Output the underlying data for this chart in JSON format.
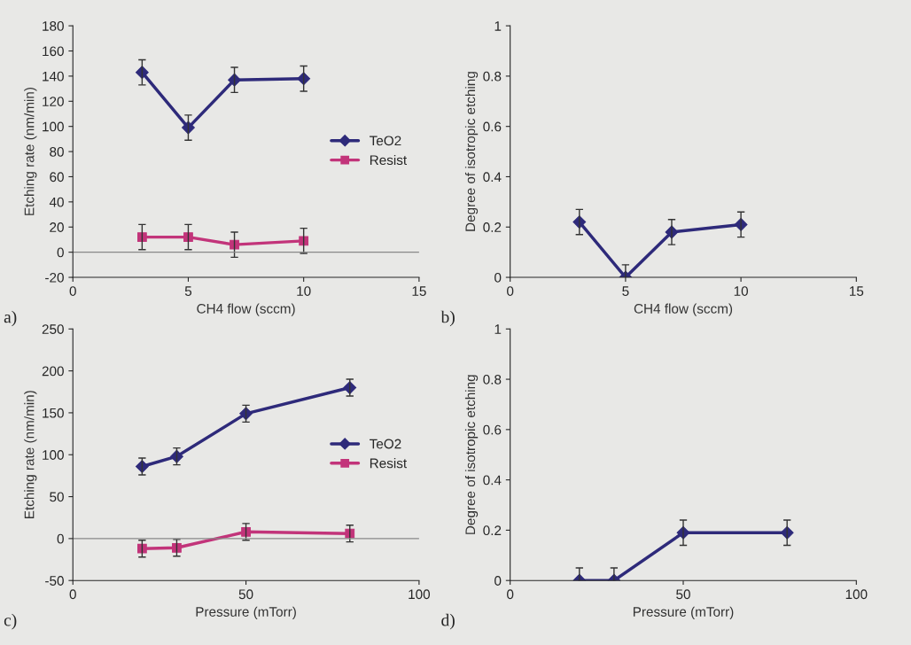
{
  "chart_data": [
    {
      "type": "line",
      "xlabel": "CH4 flow (sccm)",
      "ylabel": "Etching rate (nm/min)",
      "xlim": [
        0,
        15
      ],
      "xticks": [
        0,
        5,
        10,
        15
      ],
      "ylim": [
        -20,
        180
      ],
      "yticks": [
        -20,
        0,
        20,
        40,
        60,
        80,
        100,
        120,
        140,
        160,
        180
      ],
      "grid": false,
      "legend": "right",
      "annotations": [
        "a)"
      ],
      "ref_lines": [
        {
          "axis": "y",
          "value": 0,
          "color": "#888888"
        }
      ],
      "series": [
        {
          "name": "TeO2",
          "color": "#2e2a7a",
          "marker": "diamond",
          "x": [
            3,
            5,
            7,
            10
          ],
          "values": [
            143,
            99,
            137,
            138
          ],
          "errors": [
            10,
            10,
            10,
            10
          ]
        },
        {
          "name": "Resist",
          "color": "#c2347a",
          "marker": "square",
          "x": [
            3,
            5,
            7,
            10
          ],
          "values": [
            12,
            12,
            6,
            9
          ],
          "errors": [
            10,
            10,
            10,
            10
          ]
        }
      ]
    },
    {
      "type": "line",
      "xlabel": "CH4 flow (sccm)",
      "ylabel": "Degree of isotropic etching",
      "xlim": [
        0,
        15
      ],
      "xticks": [
        0,
        5,
        10,
        15
      ],
      "ylim": [
        0,
        1
      ],
      "yticks": [
        0,
        0.2,
        0.4,
        0.6,
        0.8,
        1
      ],
      "grid": false,
      "annotations": [
        "b)"
      ],
      "series": [
        {
          "color": "#2e2a7a",
          "marker": "diamond",
          "x": [
            3,
            5,
            7,
            10
          ],
          "values": [
            0.22,
            0,
            0.18,
            0.21
          ],
          "errors": [
            0.05,
            0.05,
            0.05,
            0.05
          ]
        }
      ]
    },
    {
      "type": "line",
      "xlabel": "Pressure (mTorr)",
      "ylabel": "Etching rate (nm/min)",
      "xlim": [
        0,
        100
      ],
      "xticks": [
        0,
        50,
        100
      ],
      "ylim": [
        -50,
        250
      ],
      "yticks": [
        -50,
        0,
        50,
        100,
        150,
        200,
        250
      ],
      "grid": false,
      "legend": "right",
      "annotations": [
        "c)"
      ],
      "ref_lines": [
        {
          "axis": "y",
          "value": 0,
          "color": "#888888"
        }
      ],
      "series": [
        {
          "name": "TeO2",
          "color": "#2e2a7a",
          "marker": "diamond",
          "x": [
            20,
            30,
            50,
            80
          ],
          "values": [
            86,
            98,
            149,
            180
          ],
          "errors": [
            10,
            10,
            10,
            10
          ]
        },
        {
          "name": "Resist",
          "color": "#c2347a",
          "marker": "square",
          "x": [
            20,
            30,
            50,
            80
          ],
          "values": [
            -12,
            -11,
            8,
            6
          ],
          "errors": [
            10,
            10,
            10,
            10
          ]
        }
      ]
    },
    {
      "type": "line",
      "xlabel": "Pressure (mTorr)",
      "ylabel": "Degree of isotropic etching",
      "xlim": [
        0,
        100
      ],
      "xticks": [
        0,
        50,
        100
      ],
      "ylim": [
        0,
        1
      ],
      "yticks": [
        0,
        0.2,
        0.4,
        0.6,
        0.8,
        1
      ],
      "grid": false,
      "annotations": [
        "d)"
      ],
      "series": [
        {
          "color": "#2e2a7a",
          "marker": "diamond",
          "x": [
            20,
            30,
            50,
            80
          ],
          "values": [
            0,
            0,
            0.19,
            0.19
          ],
          "errors": [
            0.05,
            0.05,
            0.05,
            0.05
          ]
        }
      ]
    }
  ]
}
